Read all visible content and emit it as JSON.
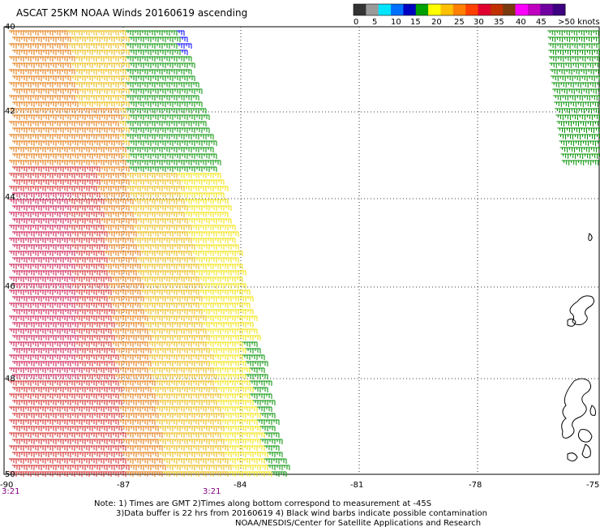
{
  "title": "ASCAT 25KM NOAA Winds 20160619 ascending",
  "legend": {
    "labels": [
      "0",
      "5",
      "10",
      "15",
      "20",
      "25",
      "30",
      "35",
      "40",
      "45",
      ">50 knots"
    ],
    "colors": [
      "#333333",
      "#9a9a9a",
      "#00e5ff",
      "#0070ff",
      "#0000c0",
      "#00a000",
      "#ffff00",
      "#ffc000",
      "#ff8000",
      "#ff4000",
      "#e00030",
      "#c03000",
      "#7a3a10",
      "#ff00ff",
      "#c000c0",
      "#7000a0",
      "#3c0080"
    ]
  },
  "x_axis": {
    "labels": [
      "-90",
      "-87",
      "-84",
      "-81",
      "-78",
      "-75"
    ]
  },
  "y_axis": {
    "labels": [
      "40",
      "42",
      "44",
      "46",
      "48",
      "50"
    ]
  },
  "times": {
    "left": "3:21",
    "mid": "3:21"
  },
  "notes": [
    "Note: 1) Times are GMT 2)Times along bottom correspond to measurement at -45S",
    "3)Data buffer is 22 hrs from 20160619 4) Black wind barbs indicate possible contamination",
    "NOAA/NESDIS/Center for Satellite Applications and Research"
  ],
  "wind_colors": {
    "yellow": "#f0e000",
    "gold": "#e8b400",
    "orange": "#e07000",
    "red": "#d02020",
    "crimson": "#c8104a",
    "green": "#009000",
    "blue": "#0000ff"
  }
}
